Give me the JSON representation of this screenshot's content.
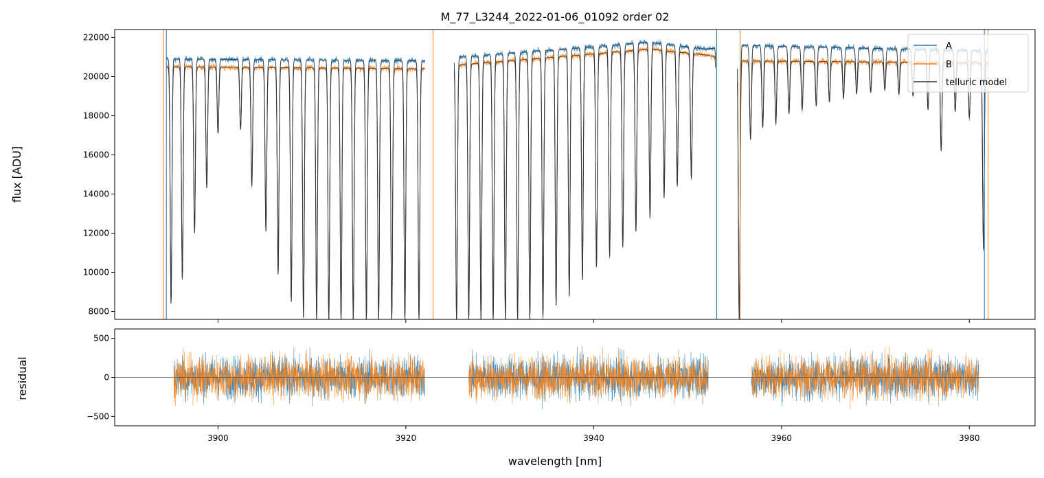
{
  "chart_data": [
    {
      "type": "line",
      "title": "M_77_L3244_2022-01-06_01092  order 02",
      "xlabel": "",
      "ylabel": "flux [ADU]",
      "xlim": [
        3889,
        3987
      ],
      "ylim": [
        7600,
        22400
      ],
      "yticks": [
        8000,
        10000,
        12000,
        14000,
        16000,
        18000,
        20000,
        22000
      ],
      "ytick_labels": [
        "8000",
        "10000",
        "12000",
        "14000",
        "16000",
        "18000",
        "20000",
        "22000"
      ],
      "xticks": [
        3900,
        3920,
        3940,
        3960,
        3980
      ],
      "legend": {
        "position": "top-right",
        "entries": [
          "A",
          "B",
          "telluric model"
        ]
      },
      "series": [
        {
          "name": "A",
          "color": "#1f77b4",
          "continuum": [
            [
              3894.5,
              20900
            ],
            [
              3922,
              20800
            ],
            [
              3926,
              21000
            ],
            [
              3946,
              21750
            ],
            [
              3952,
              21400
            ],
            [
              3955.5,
              21600
            ],
            [
              3982,
              21300
            ]
          ]
        },
        {
          "name": "B",
          "color": "#ff7f0e",
          "continuum": [
            [
              3894.5,
              20500
            ],
            [
              3922,
              20400
            ],
            [
              3926,
              20600
            ],
            [
              3946,
              21400
            ],
            [
              3952,
              21100
            ],
            [
              3955.5,
              20800
            ],
            [
              3982,
              20700
            ]
          ]
        },
        {
          "name": "telluric model",
          "color": "#333333"
        }
      ],
      "absorption_lines": [
        {
          "x": 3895.0,
          "depth": 8400
        },
        {
          "x": 3896.2,
          "depth": 9700
        },
        {
          "x": 3897.5,
          "depth": 12000
        },
        {
          "x": 3898.8,
          "depth": 14300
        },
        {
          "x": 3900.0,
          "depth": 17100
        },
        {
          "x": 3902.4,
          "depth": 17300
        },
        {
          "x": 3903.6,
          "depth": 14400
        },
        {
          "x": 3905.1,
          "depth": 12100
        },
        {
          "x": 3906.4,
          "depth": 9900
        },
        {
          "x": 3907.8,
          "depth": 8500
        },
        {
          "x": 3909.1,
          "depth": 7700
        },
        {
          "x": 3910.5,
          "depth": 7600
        },
        {
          "x": 3911.8,
          "depth": 7600
        },
        {
          "x": 3913.1,
          "depth": 7600
        },
        {
          "x": 3914.4,
          "depth": 7600
        },
        {
          "x": 3915.8,
          "depth": 7600
        },
        {
          "x": 3917.1,
          "depth": 7600
        },
        {
          "x": 3918.5,
          "depth": 7600
        },
        {
          "x": 3919.9,
          "depth": 7600
        },
        {
          "x": 3921.4,
          "depth": 7600
        },
        {
          "x": 3922.9,
          "depth": 7600
        },
        {
          "x": 3925.4,
          "depth": 7600
        },
        {
          "x": 3926.7,
          "depth": 7600
        },
        {
          "x": 3928.0,
          "depth": 7600
        },
        {
          "x": 3929.3,
          "depth": 7600
        },
        {
          "x": 3930.6,
          "depth": 7600
        },
        {
          "x": 3931.9,
          "depth": 7600
        },
        {
          "x": 3933.2,
          "depth": 7600
        },
        {
          "x": 3934.6,
          "depth": 7700
        },
        {
          "x": 3936.0,
          "depth": 8300
        },
        {
          "x": 3937.4,
          "depth": 8800
        },
        {
          "x": 3938.8,
          "depth": 9600
        },
        {
          "x": 3940.3,
          "depth": 10300
        },
        {
          "x": 3941.7,
          "depth": 10800
        },
        {
          "x": 3943.1,
          "depth": 11300
        },
        {
          "x": 3944.5,
          "depth": 12100
        },
        {
          "x": 3946.0,
          "depth": 12800
        },
        {
          "x": 3947.5,
          "depth": 13800
        },
        {
          "x": 3948.9,
          "depth": 14400
        },
        {
          "x": 3950.4,
          "depth": 14800
        },
        {
          "x": 3953.2,
          "depth": 8300
        },
        {
          "x": 3955.5,
          "depth": 7600
        },
        {
          "x": 3956.7,
          "depth": 16800
        },
        {
          "x": 3958.0,
          "depth": 17400
        },
        {
          "x": 3959.4,
          "depth": 17600
        },
        {
          "x": 3960.8,
          "depth": 18100
        },
        {
          "x": 3962.2,
          "depth": 18300
        },
        {
          "x": 3963.7,
          "depth": 18500
        },
        {
          "x": 3965.1,
          "depth": 18700
        },
        {
          "x": 3966.6,
          "depth": 18900
        },
        {
          "x": 3968.0,
          "depth": 19100
        },
        {
          "x": 3969.5,
          "depth": 19200
        },
        {
          "x": 3971.0,
          "depth": 19300
        },
        {
          "x": 3972.5,
          "depth": 19100
        },
        {
          "x": 3974.0,
          "depth": 19000
        },
        {
          "x": 3975.6,
          "depth": 18300
        },
        {
          "x": 3977.0,
          "depth": 16200
        },
        {
          "x": 3978.5,
          "depth": 18200
        },
        {
          "x": 3980.0,
          "depth": 17900
        },
        {
          "x": 3981.5,
          "depth": 11200
        }
      ],
      "spikes": [
        {
          "x": 3894.2,
          "value": 22400
        },
        {
          "x": 3894.5,
          "value": 22400
        },
        {
          "x": 3922.9,
          "value": 22400
        },
        {
          "x": 3953.1,
          "value": 22400
        },
        {
          "x": 3955.6,
          "value": 22400
        },
        {
          "x": 3981.6,
          "value": 22400
        },
        {
          "x": 3982.0,
          "value": 22400
        }
      ]
    },
    {
      "type": "line",
      "title": "",
      "xlabel": "wavelength [nm]",
      "ylabel": "residual",
      "xlim": [
        3889,
        3987
      ],
      "ylim": [
        -620,
        620
      ],
      "yticks": [
        -500,
        0,
        500
      ],
      "ytick_labels": [
        "−500",
        "0",
        "500"
      ],
      "xticks": [
        3900,
        3920,
        3940,
        3960,
        3980
      ],
      "xtick_labels": [
        "3900",
        "3920",
        "3940",
        "3960",
        "3980"
      ],
      "reference_line": 0,
      "segments": [
        [
          3895.3,
          3922.0
        ],
        [
          3926.7,
          3952.2
        ],
        [
          3956.8,
          3981.0
        ]
      ],
      "noise_amplitude": 260,
      "series": [
        {
          "name": "A",
          "color": "#1f77b4"
        },
        {
          "name": "B",
          "color": "#ff7f0e"
        }
      ]
    }
  ]
}
